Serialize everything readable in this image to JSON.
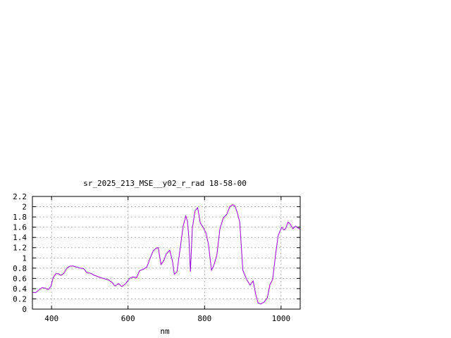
{
  "chart_data": {
    "type": "line",
    "title": "sr_2025_213_MSE__y02_r_rad 18-58-00",
    "xlabel": "nm",
    "ylabel": "",
    "xlim": [
      350,
      1050
    ],
    "ylim": [
      0,
      2.2
    ],
    "grid": true,
    "x_ticks": [
      400,
      600,
      800,
      1000
    ],
    "y_ticks": [
      0,
      0.2,
      0.4,
      0.6,
      0.8,
      1,
      1.2,
      1.4,
      1.6,
      1.8,
      2,
      2.2
    ],
    "series": [
      {
        "color": "#9400d3",
        "x": [
          350,
          358,
          366,
          375,
          384,
          391,
          398,
          404,
          411,
          418,
          425,
          432,
          440,
          448,
          457,
          466,
          475,
          484,
          493,
          502,
          512,
          520,
          530,
          540,
          549,
          558,
          566,
          575,
          584,
          594,
          604,
          613,
          622,
          630,
          640,
          649,
          656,
          666,
          674,
          679,
          686,
          693,
          700,
          709,
          716,
          721,
          728,
          736,
          744,
          751,
          755,
          759,
          763,
          768,
          775,
          782,
          789,
          796,
          803,
          810,
          818,
          824,
          832,
          840,
          849,
          858,
          866,
          874,
          880,
          886,
          892,
          900,
          910,
          919,
          927,
          934,
          940,
          947,
          956,
          964,
          971,
          978,
          985,
          992,
          997,
          1002,
          1007,
          1012,
          1018,
          1024,
          1031,
          1038,
          1045,
          1050
        ],
        "values": [
          0.33,
          0.32,
          0.37,
          0.42,
          0.41,
          0.38,
          0.44,
          0.61,
          0.69,
          0.69,
          0.66,
          0.7,
          0.8,
          0.84,
          0.84,
          0.82,
          0.8,
          0.79,
          0.71,
          0.7,
          0.66,
          0.64,
          0.61,
          0.59,
          0.57,
          0.52,
          0.45,
          0.5,
          0.44,
          0.5,
          0.6,
          0.63,
          0.61,
          0.75,
          0.78,
          0.82,
          0.96,
          1.14,
          1.19,
          1.2,
          0.87,
          0.94,
          1.08,
          1.15,
          0.94,
          0.68,
          0.73,
          1.17,
          1.62,
          1.82,
          1.72,
          1.41,
          0.73,
          1.57,
          1.92,
          1.98,
          1.68,
          1.6,
          1.5,
          1.28,
          0.76,
          0.85,
          1.05,
          1.56,
          1.78,
          1.85,
          2.0,
          2.04,
          2.01,
          1.87,
          1.7,
          0.76,
          0.58,
          0.47,
          0.55,
          0.28,
          0.12,
          0.1,
          0.14,
          0.22,
          0.48,
          0.58,
          1.02,
          1.42,
          1.52,
          1.6,
          1.55,
          1.57,
          1.7,
          1.66,
          1.57,
          1.62,
          1.58,
          1.56
        ]
      }
    ]
  }
}
